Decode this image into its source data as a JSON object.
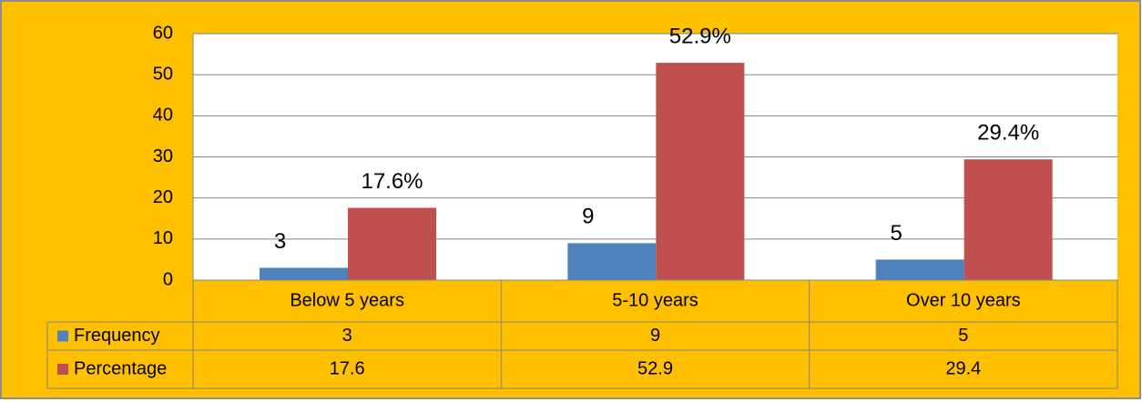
{
  "chart_data": {
    "type": "bar",
    "categories": [
      "Below 5 years",
      "5-10 years",
      "Over 10 years"
    ],
    "series": [
      {
        "name": "Frequency",
        "color": "#4f81bd",
        "values": [
          3,
          9,
          5
        ]
      },
      {
        "name": "Percentage",
        "color": "#c0504d",
        "values": [
          17.6,
          52.9,
          29.4
        ],
        "value_labels": [
          "17.6%",
          "52.9%",
          "29.4%"
        ]
      }
    ],
    "ylim": [
      0,
      60
    ],
    "yticks": [
      0,
      10,
      20,
      30,
      40,
      50,
      60
    ],
    "grid": true
  }
}
